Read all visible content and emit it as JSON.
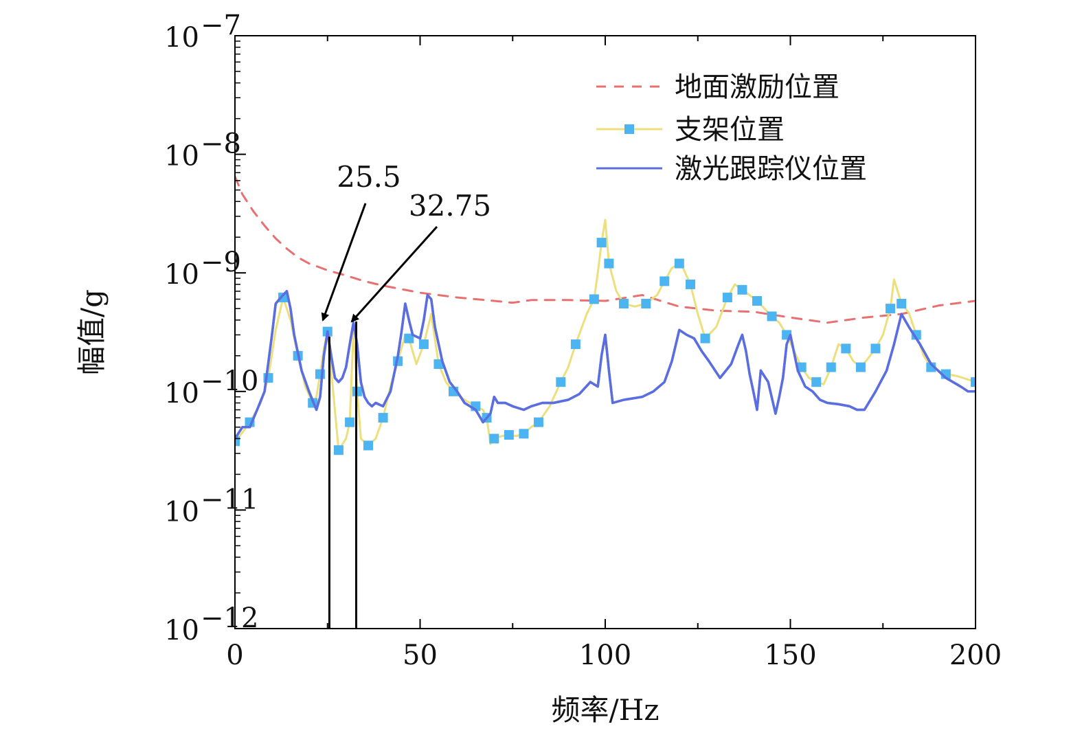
{
  "chart_data": {
    "type": "line",
    "xlabel": "频率/Hz",
    "ylabel": "幅值/g",
    "xlim": [
      0,
      200
    ],
    "ylim": [
      1e-12,
      1e-07
    ],
    "yscale": "log",
    "x_ticks": [
      0,
      50,
      100,
      150,
      200
    ],
    "x_tick_labels": [
      "0",
      "50",
      "100",
      "150",
      "200"
    ],
    "y_ticks": [
      1e-12,
      1e-11,
      1e-10,
      1e-09,
      1e-08,
      1e-07
    ],
    "y_tick_labels": [
      {
        "base": "10",
        "exp": "−12"
      },
      {
        "base": "10",
        "exp": "−11"
      },
      {
        "base": "10",
        "exp": "−10"
      },
      {
        "base": "10",
        "exp": "−9"
      },
      {
        "base": "10",
        "exp": "−8"
      },
      {
        "base": "10",
        "exp": "−7"
      }
    ],
    "legend_position": "top-right",
    "colors": {
      "ground": "#e87070",
      "support_line": "#ecdf7c",
      "support_marker": "#4cb4f0",
      "laser": "#5a6ee0"
    },
    "series": [
      {
        "name": "地面激励位置",
        "style": "dashed",
        "x": [
          0,
          2,
          5,
          8,
          11,
          14,
          17,
          20,
          25,
          30,
          35,
          40,
          50,
          60,
          70,
          75,
          80,
          90,
          100,
          110,
          115,
          120,
          130,
          140,
          150,
          160,
          170,
          180,
          190,
          200
        ],
        "y": [
          6.5e-09,
          4.6e-09,
          3.3e-09,
          2.5e-09,
          1.95e-09,
          1.6e-09,
          1.35e-09,
          1.2e-09,
          1.05e-09,
          9.5e-10,
          8.5e-10,
          7.8e-10,
          6.8e-10,
          6.2e-10,
          5.8e-10,
          5.6e-10,
          5.9e-10,
          5.9e-10,
          5.8e-10,
          6.5e-10,
          5.8e-10,
          5.2e-10,
          4.8e-10,
          4.7e-10,
          4.2e-10,
          3.8e-10,
          4.2e-10,
          4.5e-10,
          5.3e-10,
          5.8e-10
        ]
      },
      {
        "name": "支架位置",
        "style": "solid-with-markers",
        "x": [
          0,
          2,
          4,
          7,
          9,
          11,
          13,
          15,
          17,
          19,
          21,
          22,
          23,
          24,
          25,
          26,
          28,
          30,
          31,
          32,
          33,
          34,
          36,
          38,
          40,
          42,
          44,
          46,
          47,
          49,
          51,
          53,
          55,
          57,
          59,
          62,
          65,
          67,
          68,
          69,
          70,
          72,
          74,
          76,
          78,
          80,
          82,
          85,
          88,
          90,
          92,
          95,
          97,
          98,
          99,
          100,
          101,
          103,
          105,
          108,
          111,
          114,
          116,
          118,
          120,
          121,
          123,
          125,
          127,
          130,
          133,
          135,
          137,
          139,
          141,
          143,
          145,
          147,
          149,
          151,
          153,
          155,
          157,
          159,
          161,
          163,
          165,
          167,
          169,
          171,
          173,
          175,
          177,
          178,
          180,
          182,
          184,
          186,
          188,
          190,
          192,
          195,
          200
        ],
        "y": [
          3.8e-11,
          4.5e-11,
          5.5e-11,
          8e-11,
          1.3e-10,
          3.3e-10,
          6.2e-10,
          4e-10,
          2e-10,
          1.1e-10,
          8e-11,
          9e-11,
          1.4e-10,
          2.3e-10,
          3.2e-10,
          1.5e-10,
          3.2e-11,
          4e-11,
          5.5e-11,
          3.3e-10,
          1e-10,
          4e-11,
          3.5e-11,
          4e-11,
          6e-11,
          1.1e-10,
          1.8e-10,
          3e-10,
          2.8e-10,
          1.7e-10,
          2.5e-10,
          4.5e-10,
          1.7e-10,
          1.2e-10,
          1e-10,
          8.5e-11,
          7.5e-11,
          7e-11,
          6e-11,
          3.6e-11,
          4e-11,
          4.2e-11,
          4.3e-11,
          4.2e-11,
          4.4e-11,
          5e-11,
          5.5e-11,
          7.5e-11,
          1.2e-10,
          1.6e-10,
          2.5e-10,
          4.5e-10,
          6e-10,
          1e-09,
          1.8e-09,
          2.8e-09,
          1.2e-09,
          7e-10,
          5.5e-10,
          5.2e-10,
          5.5e-10,
          6.5e-10,
          8.5e-10,
          1.1e-09,
          1.2e-09,
          1.1e-09,
          8e-10,
          4.5e-10,
          2.8e-10,
          3.5e-10,
          6.2e-10,
          8e-10,
          7.2e-10,
          6.5e-10,
          5.8e-10,
          5e-10,
          4.3e-10,
          3.8e-10,
          3e-10,
          2.2e-10,
          1.6e-10,
          1.3e-10,
          1.2e-10,
          1.15e-10,
          1.6e-10,
          2.5e-10,
          2.3e-10,
          1.8e-10,
          1.6e-10,
          1.9e-10,
          2.3e-10,
          3e-10,
          5e-10,
          8.8e-10,
          5.5e-10,
          4.6e-10,
          3e-10,
          2e-10,
          1.6e-10,
          1.5e-10,
          1.4e-10,
          1.35e-10,
          1.2e-10
        ]
      },
      {
        "name": "激光跟踪仪位置",
        "style": "solid",
        "x": [
          0,
          2,
          4,
          6,
          8,
          10,
          11,
          12,
          13,
          14,
          15,
          16,
          18,
          20,
          22,
          23,
          24,
          25,
          26,
          27,
          28,
          29,
          30,
          31,
          32,
          33,
          34,
          35,
          36,
          37,
          38,
          40,
          42,
          44,
          45,
          46,
          47,
          48,
          50,
          51,
          52,
          53,
          54,
          56,
          58,
          60,
          62,
          65,
          67,
          69,
          70,
          71,
          73,
          75,
          78,
          80,
          83,
          86,
          90,
          93,
          96,
          98,
          99,
          100,
          101,
          102,
          105,
          110,
          113,
          116,
          118,
          120,
          122,
          124,
          126,
          128,
          131,
          134,
          136,
          137,
          138,
          139,
          140,
          141,
          142,
          144,
          146,
          147,
          148,
          149,
          150,
          152,
          154,
          156,
          158,
          160,
          163,
          166,
          168,
          170,
          173,
          176,
          178,
          180,
          182,
          185,
          188,
          192,
          196,
          198,
          200
        ],
        "y": [
          4e-11,
          5e-11,
          5e-11,
          7e-11,
          1e-10,
          3e-10,
          5.5e-10,
          6e-10,
          6.5e-10,
          7e-10,
          5e-10,
          3e-10,
          1.5e-10,
          1e-10,
          7e-11,
          9e-11,
          2e-10,
          3.2e-10,
          2e-10,
          1.3e-10,
          1.2e-10,
          1.3e-10,
          1.6e-10,
          2.5e-10,
          3.8e-10,
          2.5e-10,
          1.2e-10,
          9e-11,
          8e-11,
          7.5e-11,
          8e-11,
          7.5e-11,
          1e-10,
          2e-10,
          3.2e-10,
          5.5e-10,
          4e-10,
          3e-10,
          2.8e-10,
          4e-10,
          6.5e-10,
          6e-10,
          3.5e-10,
          1.8e-10,
          1.2e-10,
          1e-10,
          8e-11,
          7e-11,
          5.5e-11,
          6.5e-11,
          9e-11,
          8e-11,
          8e-11,
          7.5e-11,
          7e-11,
          7.5e-11,
          8e-11,
          8e-11,
          8.5e-11,
          9.5e-11,
          1.2e-10,
          1.1e-10,
          2e-10,
          3e-10,
          1.5e-10,
          8e-11,
          8.5e-11,
          9e-11,
          1e-10,
          1.2e-10,
          1.8e-10,
          3.3e-10,
          3e-10,
          2.8e-10,
          2.2e-10,
          1.8e-10,
          1.3e-10,
          1.7e-10,
          2.5e-10,
          3e-10,
          2.2e-10,
          1.4e-10,
          1e-10,
          7e-11,
          1.5e-10,
          1.2e-10,
          6.5e-11,
          9e-11,
          1.3e-10,
          2.5e-10,
          3e-10,
          1.5e-10,
          1.1e-10,
          1e-10,
          8.5e-11,
          8e-11,
          7.8e-11,
          7.5e-11,
          7e-11,
          7e-11,
          1e-10,
          1.5e-10,
          2.5e-10,
          4.5e-10,
          3.5e-10,
          2.5e-10,
          1.7e-10,
          1.3e-10,
          1.1e-10,
          1e-10,
          1e-10
        ]
      }
    ],
    "annotations": [
      {
        "text": "25.5",
        "x": 25.5
      },
      {
        "text": "32.75",
        "x": 32.75
      }
    ]
  }
}
